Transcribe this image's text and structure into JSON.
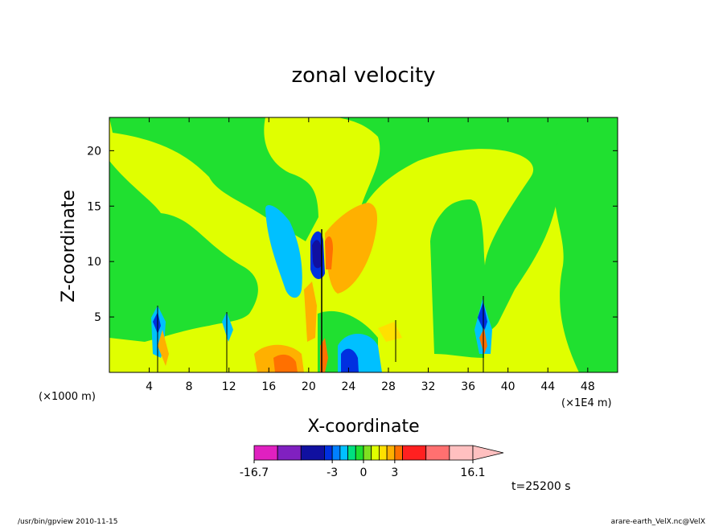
{
  "chart_data": {
    "type": "heatmap",
    "title": "zonal velocity",
    "xlabel": "X-coordinate",
    "ylabel": "Z-coordinate",
    "x_units_left": "(×1000 m)",
    "x_units_right": "(×1E4 m)",
    "xlim": [
      0,
      51
    ],
    "ylim": [
      0,
      23
    ],
    "x_ticks": [
      4,
      8,
      12,
      16,
      20,
      24,
      28,
      32,
      36,
      40,
      44,
      48
    ],
    "y_ticks": [
      5,
      10,
      15,
      20
    ],
    "colorbar": {
      "min_label": "-16.7",
      "max_label": "16.1",
      "tick_labels": [
        "-16.7",
        "-3",
        "0",
        "3",
        "16.1"
      ],
      "levels": [
        -16.7,
        -12.4,
        -8.1,
        -5.5,
        -3,
        -2,
        -1,
        -0.5,
        0,
        0.5,
        1,
        2,
        3,
        5.5,
        8.1,
        12.4,
        16.1
      ],
      "colors": [
        "#e020c0",
        "#8020c0",
        "#1010a0",
        "#0030e0",
        "#0080ff",
        "#00c0ff",
        "#00e080",
        "#20e030",
        "#80e020",
        "#e0ff00",
        "#ffe000",
        "#ffb000",
        "#ff7000",
        "#ff2020",
        "#ff7070",
        "#ffc0c0"
      ]
    },
    "features": [
      {
        "kind": "positive_core",
        "x": 5,
        "z": 3,
        "value": 5
      },
      {
        "kind": "negative_core",
        "x": 5,
        "z": 4,
        "value": -5
      },
      {
        "kind": "negative_core",
        "x": 12,
        "z": 4,
        "value": -3
      },
      {
        "kind": "positive_core",
        "x": 19,
        "z": 1.5,
        "value": 4
      },
      {
        "kind": "negative_core",
        "x": 17,
        "z": 11,
        "value": -4
      },
      {
        "kind": "negative_core",
        "x": 21,
        "z": 10.5,
        "value": -12
      },
      {
        "kind": "positive_core",
        "x": 22,
        "z": 10,
        "value": 6
      },
      {
        "kind": "positive_core",
        "x": 26,
        "z": 11,
        "value": 3
      },
      {
        "kind": "negative_core",
        "x": 24,
        "z": 1.5,
        "value": -8
      },
      {
        "kind": "negative_core",
        "x": 38,
        "z": 4,
        "value": -8
      },
      {
        "kind": "positive_core",
        "x": 38,
        "z": 3,
        "value": 4
      }
    ]
  },
  "info": {
    "time_label": "t=25200 s",
    "footer_left": "/usr/bin/gpview   2010-11-15",
    "footer_right": "arare-earth_VelX.nc@VelX"
  }
}
